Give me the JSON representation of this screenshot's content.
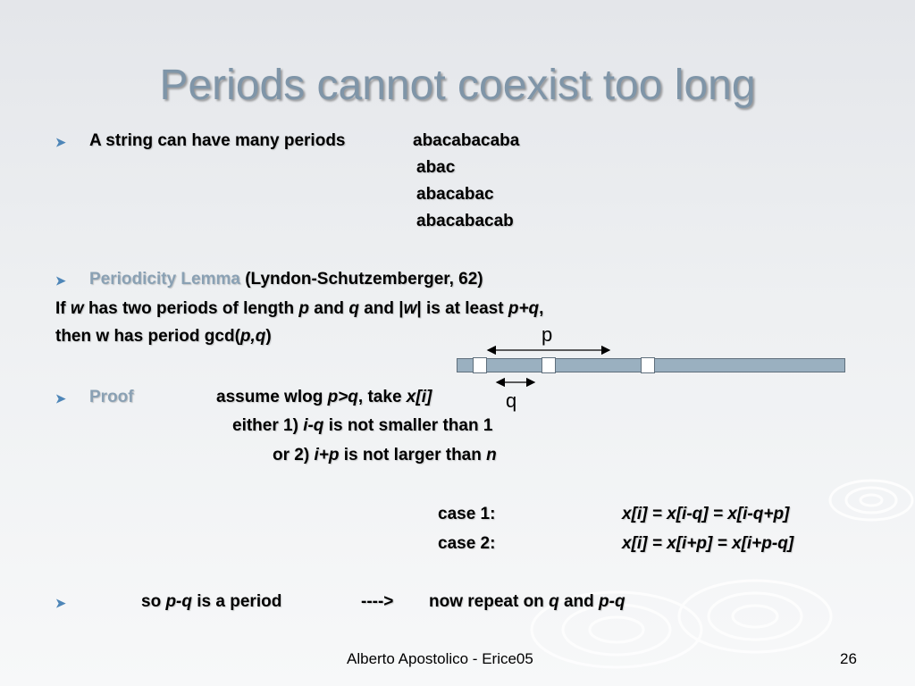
{
  "title": "Periods cannot coexist too long",
  "bullet1": {
    "label": "A string can have many periods",
    "example_string": "abacabacaba",
    "periods": [
      "abac",
      "abacabac",
      "abacabacab"
    ]
  },
  "bullet2": {
    "term": "Periodicity Lemma",
    "citation": "(Lyndon-Schutzemberger, 62)"
  },
  "lemma": {
    "line1": [
      "If ",
      "w",
      " has two periods of length ",
      "p",
      " and ",
      "q",
      " and |",
      "w",
      "| is at least  ",
      "p+q",
      ","
    ],
    "line2": [
      "then w has period  gcd(",
      "p,q",
      ")"
    ]
  },
  "diagram": {
    "p_label": "p",
    "q_label": "q"
  },
  "proof": {
    "term": "Proof",
    "assume": [
      "assume wlog ",
      "p>q",
      ", take ",
      "x[i]"
    ],
    "either": [
      "either  1) ",
      "i-q",
      "  is not smaller than 1"
    ],
    "or": [
      "or 2) ",
      "i+p",
      " is not larger than  ",
      "n"
    ],
    "case1_label": "case  1:",
    "case1_eq": "x[i] = x[i-q] = x[i-q+p]",
    "case2_label": "case  2:",
    "case2_eq": "x[i] = x[i+p] = x[i+p-q]"
  },
  "conclusion": [
    "so ",
    "p-q",
    " is a period",
    "---->",
    "now repeat on ",
    "q",
    " and ",
    "p-q"
  ],
  "footer": {
    "author": "Alberto Apostolico  - Erice05",
    "page": "26"
  },
  "colors": {
    "title": "#7f95a8",
    "bullet": "#4e86b8",
    "highlight": "#8aa1b4",
    "bar": "#9ab0c0"
  }
}
